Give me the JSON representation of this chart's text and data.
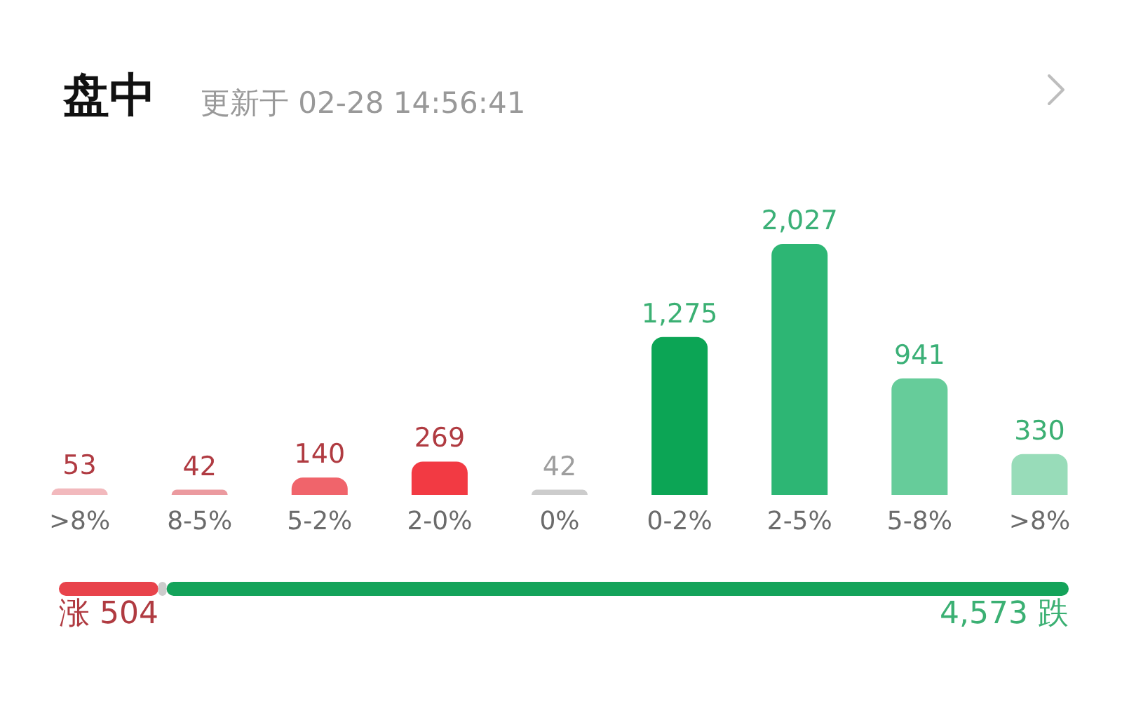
{
  "chart_data": [
    {
      "type": "bar",
      "title": "盘中",
      "subtitle": "更新于 02-28 14:56:41",
      "categories": [
        ">8%",
        "8-5%",
        "5-2%",
        "2-0%",
        "0%",
        "0-2%",
        "2-5%",
        "5-8%",
        ">8%"
      ],
      "values": [
        53,
        42,
        140,
        269,
        42,
        1275,
        2027,
        941,
        330
      ],
      "value_labels": [
        "53",
        "42",
        "140",
        "269",
        "42",
        "1,275",
        "2,027",
        "941",
        "330"
      ],
      "colors": [
        "#f2b9bd",
        "#eb9a9f",
        "#f0646b",
        "#f23a43",
        "#cccccc",
        "#0ca555",
        "#2db674",
        "#66cc9a",
        "#98dcb9"
      ],
      "grid": false,
      "tick_labels": "x"
    },
    {
      "type": "bar",
      "orientation": "horizontal",
      "stacked": true,
      "categories": [
        null
      ],
      "series": [
        {
          "color": "#e8434b",
          "values": [
            504
          ],
          "value_labels": [
            "涨 504"
          ]
        },
        {
          "color": "#cccccc",
          "values": [
            42
          ],
          "value_labels": [
            null
          ]
        },
        {
          "color": "#14a35a",
          "values": [
            4573
          ],
          "value_labels": [
            "4,573 跌"
          ]
        }
      ],
      "grid": false,
      "tick_labels": false
    }
  ]
}
